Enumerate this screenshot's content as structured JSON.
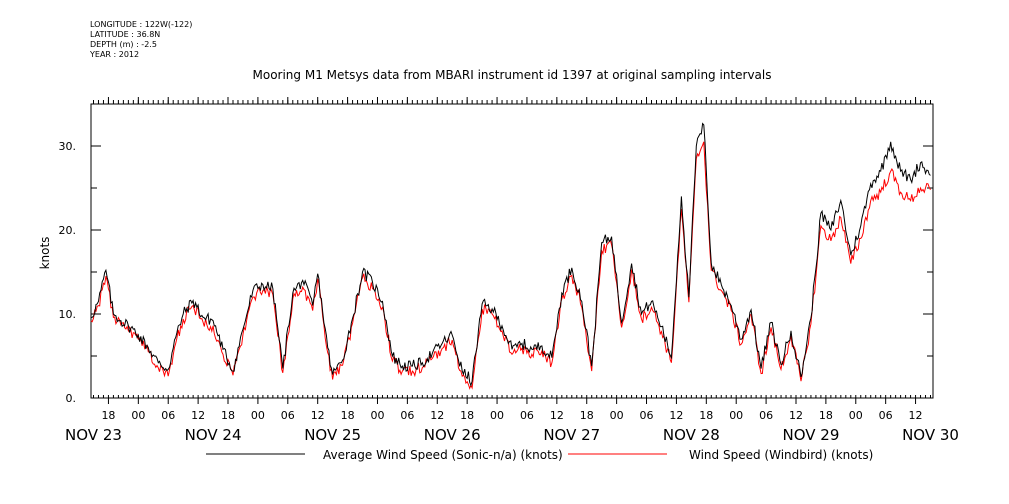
{
  "meta": {
    "longitude": "LONGITUDE : 122W(-122)",
    "latitude": "LATITUDE : 36.8N",
    "depth": "DEPTH (m) : -2.5",
    "year": "YEAR : 2012"
  },
  "chart_data": {
    "type": "line",
    "title": "Mooring M1 Metsys data from MBARI instrument id 1397 at original sampling intervals",
    "ylabel": "knots",
    "xlabel": "",
    "ylim": [
      0,
      35
    ],
    "xlim_hours": [
      -9.5,
      159.5
    ],
    "x_unit": "hours since NOV 23 00:00, 2012",
    "y_ticks": [
      {
        "value": 0,
        "label": "0."
      },
      {
        "value": 10,
        "label": "10."
      },
      {
        "value": 20,
        "label": "20."
      },
      {
        "value": 30,
        "label": "30."
      }
    ],
    "y_minor_ticks": [
      5,
      15,
      25
    ],
    "x_hour_ticks": [
      {
        "hour": -6,
        "label": "18"
      },
      {
        "hour": 0,
        "label": "00"
      },
      {
        "hour": 6,
        "label": "06"
      },
      {
        "hour": 12,
        "label": "12"
      },
      {
        "hour": 18,
        "label": "18"
      },
      {
        "hour": 24,
        "label": "00"
      },
      {
        "hour": 30,
        "label": "06"
      },
      {
        "hour": 36,
        "label": "12"
      },
      {
        "hour": 42,
        "label": "18"
      },
      {
        "hour": 48,
        "label": "00"
      },
      {
        "hour": 54,
        "label": "06"
      },
      {
        "hour": 60,
        "label": "12"
      },
      {
        "hour": 66,
        "label": "18"
      },
      {
        "hour": 72,
        "label": "00"
      },
      {
        "hour": 78,
        "label": "06"
      },
      {
        "hour": 84,
        "label": "12"
      },
      {
        "hour": 90,
        "label": "18"
      },
      {
        "hour": 96,
        "label": "00"
      },
      {
        "hour": 102,
        "label": "06"
      },
      {
        "hour": 108,
        "label": "12"
      },
      {
        "hour": 114,
        "label": "18"
      },
      {
        "hour": 120,
        "label": "00"
      },
      {
        "hour": 126,
        "label": "06"
      },
      {
        "hour": 132,
        "label": "12"
      },
      {
        "hour": 138,
        "label": "18"
      },
      {
        "hour": 144,
        "label": "00"
      },
      {
        "hour": 150,
        "label": "06"
      },
      {
        "hour": 156,
        "label": "12"
      }
    ],
    "x_day_labels": [
      {
        "hour": -9,
        "label": "NOV 23"
      },
      {
        "hour": 15,
        "label": "NOV 24"
      },
      {
        "hour": 39,
        "label": "NOV 25"
      },
      {
        "hour": 63,
        "label": "NOV 26"
      },
      {
        "hour": 87,
        "label": "NOV 27"
      },
      {
        "hour": 111,
        "label": "NOV 28"
      },
      {
        "hour": 135,
        "label": "NOV 29"
      },
      {
        "hour": 159,
        "label": "NOV 30"
      }
    ],
    "series": [
      {
        "name": "Average Wind Speed (Sonic-n/a) (knots)",
        "color": "#000000",
        "x": [
          -9.5,
          -8,
          -6.5,
          -5,
          -3.5,
          -2,
          0,
          2,
          4,
          6,
          7.5,
          9,
          11,
          13,
          15,
          17,
          19,
          21,
          23,
          25,
          27,
          29,
          31,
          33,
          35,
          36,
          38,
          39,
          41,
          43,
          45,
          47,
          49,
          51,
          53,
          55,
          57,
          59,
          61,
          63,
          65,
          67,
          69,
          71,
          73,
          75,
          77,
          79,
          81,
          83,
          85,
          87,
          89,
          91,
          93,
          95,
          97,
          99,
          101,
          103,
          105,
          107,
          109,
          110.5,
          112,
          113.5,
          115,
          117,
          119,
          121,
          123,
          125,
          127,
          129,
          131,
          133,
          135,
          137,
          139,
          141,
          143,
          145,
          147,
          149,
          151,
          153,
          155,
          157,
          159
        ],
        "values": [
          9.6,
          11.5,
          15.2,
          10.0,
          9.2,
          8.6,
          7.5,
          6.0,
          4.2,
          3.4,
          7.2,
          10.0,
          11.6,
          9.6,
          9.2,
          5.8,
          3.2,
          8.2,
          12.8,
          13.5,
          13.0,
          3.5,
          12.5,
          14.0,
          11.0,
          14.8,
          6.0,
          2.8,
          4.5,
          9.5,
          15.0,
          13.8,
          11.5,
          5.0,
          3.8,
          3.8,
          4.2,
          5.3,
          6.5,
          7.5,
          3.2,
          2.0,
          11.2,
          10.6,
          8.6,
          5.8,
          6.5,
          5.8,
          6.2,
          4.8,
          12.5,
          15.5,
          11.5,
          3.8,
          18.5,
          19.2,
          9.0,
          16.0,
          10.0,
          11.5,
          8.5,
          4.8,
          24.0,
          12.0,
          30.0,
          32.5,
          16.0,
          13.5,
          11.0,
          7.0,
          10.5,
          3.5,
          9.0,
          4.0,
          8.0,
          2.5,
          9.5,
          22.0,
          20.0,
          23.5,
          17.0,
          20.5,
          25.5,
          27.0,
          30.5,
          27.0,
          26.0,
          28.0,
          26.5
        ]
      },
      {
        "name": "Wind Speed (Windbird) (knots)",
        "color": "#ff0000",
        "x": [
          -9.5,
          -8,
          -6.5,
          -5,
          -3.5,
          -2,
          0,
          2,
          4,
          6,
          7.5,
          9,
          11,
          13,
          15,
          17,
          19,
          21,
          23,
          25,
          27,
          29,
          31,
          33,
          35,
          36,
          38,
          39,
          41,
          43,
          45,
          47,
          49,
          51,
          53,
          55,
          57,
          59,
          61,
          63,
          65,
          67,
          69,
          71,
          73,
          75,
          77,
          79,
          81,
          83,
          85,
          87,
          89,
          91,
          93,
          95,
          97,
          99,
          101,
          103,
          105,
          107,
          109,
          110.5,
          112,
          113.5,
          115,
          117,
          119,
          121,
          123,
          125,
          127,
          129,
          131,
          133,
          135,
          137,
          139,
          141,
          143,
          145,
          147,
          149,
          151,
          153,
          155,
          157,
          159
        ],
        "values": [
          9.2,
          11.0,
          14.5,
          9.6,
          8.7,
          8.0,
          7.0,
          5.5,
          3.6,
          2.6,
          6.5,
          9.4,
          11.0,
          9.0,
          8.6,
          5.2,
          2.7,
          7.6,
          12.0,
          12.8,
          12.3,
          3.0,
          11.8,
          13.2,
          10.4,
          14.2,
          5.4,
          2.2,
          3.9,
          8.9,
          14.3,
          13.0,
          10.8,
          4.4,
          3.2,
          3.2,
          3.6,
          4.7,
          5.9,
          6.9,
          2.6,
          1.2,
          10.6,
          10.0,
          8.0,
          5.2,
          5.9,
          5.2,
          5.6,
          4.2,
          11.8,
          14.6,
          10.8,
          3.2,
          17.5,
          18.2,
          8.4,
          15.2,
          9.4,
          10.8,
          7.9,
          4.2,
          22.5,
          11.4,
          28.5,
          30.5,
          15.2,
          12.8,
          10.4,
          6.4,
          9.9,
          2.9,
          8.4,
          3.4,
          7.4,
          2.0,
          8.8,
          20.5,
          18.7,
          21.5,
          16.0,
          19.0,
          23.5,
          24.5,
          27.0,
          24.5,
          23.5,
          25.0,
          24.8
        ]
      }
    ]
  }
}
